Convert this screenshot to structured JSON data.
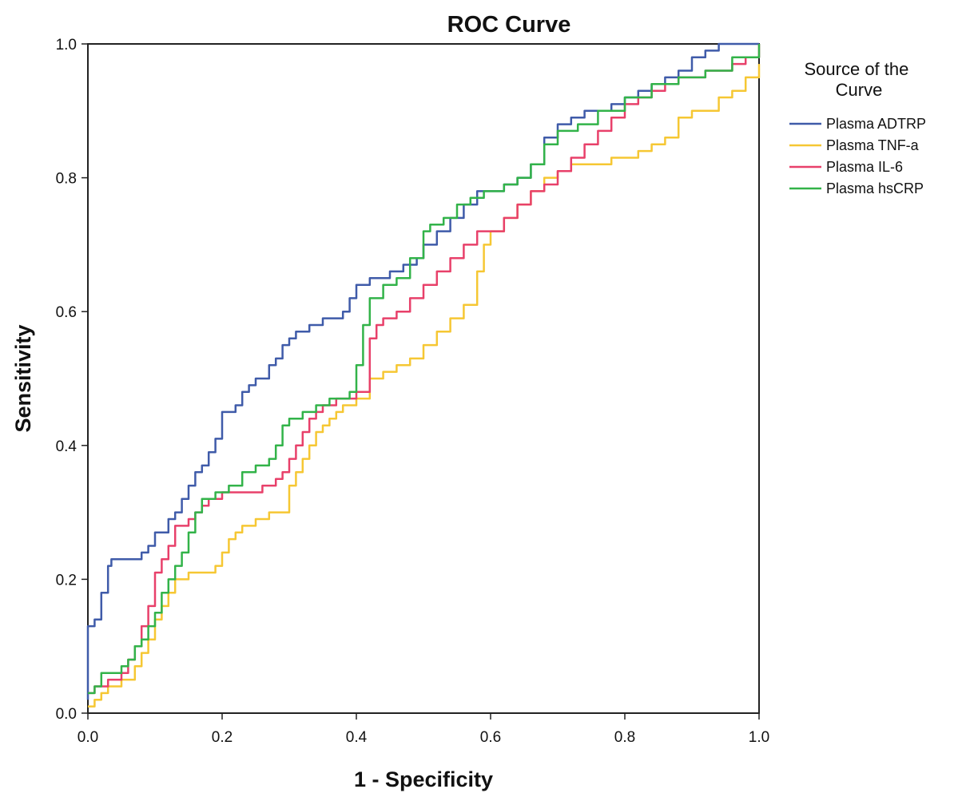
{
  "chart_data": {
    "type": "line",
    "title": "ROC Curve",
    "xlabel": "1 - Specificity",
    "ylabel": "Sensitivity",
    "xlim": [
      0,
      1
    ],
    "ylim": [
      0,
      1
    ],
    "x_ticks": [
      "0.0",
      "0.2",
      "0.4",
      "0.6",
      "0.8",
      "1.0"
    ],
    "y_ticks": [
      "0.0",
      "0.2",
      "0.4",
      "0.6",
      "0.8",
      "1.0"
    ],
    "grid": false,
    "legend": {
      "title": "Source of the Curve",
      "title_lines": [
        "Source of the",
        "Curve"
      ],
      "placement": "right"
    },
    "series": [
      {
        "name": "Plasma ADTRP",
        "color": "#3f5ba9",
        "step": true,
        "x": [
          0.0,
          0.0,
          0.01,
          0.02,
          0.03,
          0.035,
          0.05,
          0.08,
          0.09,
          0.1,
          0.12,
          0.13,
          0.14,
          0.15,
          0.16,
          0.17,
          0.18,
          0.19,
          0.2,
          0.22,
          0.23,
          0.24,
          0.25,
          0.27,
          0.28,
          0.29,
          0.3,
          0.31,
          0.33,
          0.35,
          0.36,
          0.38,
          0.39,
          0.4,
          0.42,
          0.45,
          0.47,
          0.48,
          0.49,
          0.5,
          0.52,
          0.54,
          0.56,
          0.58,
          0.6,
          0.62,
          0.64,
          0.66,
          0.68,
          0.7,
          0.72,
          0.74,
          0.76,
          0.78,
          0.8,
          0.82,
          0.84,
          0.86,
          0.88,
          0.9,
          0.92,
          0.94,
          0.96,
          1.0
        ],
        "y": [
          0.02,
          0.13,
          0.14,
          0.18,
          0.22,
          0.23,
          0.23,
          0.24,
          0.25,
          0.27,
          0.29,
          0.3,
          0.32,
          0.34,
          0.36,
          0.37,
          0.39,
          0.41,
          0.45,
          0.46,
          0.48,
          0.49,
          0.5,
          0.52,
          0.53,
          0.55,
          0.56,
          0.57,
          0.58,
          0.59,
          0.59,
          0.6,
          0.62,
          0.64,
          0.65,
          0.66,
          0.67,
          0.67,
          0.68,
          0.7,
          0.72,
          0.74,
          0.76,
          0.78,
          0.78,
          0.79,
          0.8,
          0.82,
          0.86,
          0.88,
          0.89,
          0.9,
          0.9,
          0.91,
          0.92,
          0.93,
          0.94,
          0.95,
          0.96,
          0.98,
          0.99,
          1.0,
          1.0,
          1.0
        ]
      },
      {
        "name": "Plasma TNF-a",
        "color": "#f6c733",
        "step": true,
        "x": [
          0.0,
          0.01,
          0.02,
          0.03,
          0.05,
          0.07,
          0.08,
          0.09,
          0.1,
          0.11,
          0.12,
          0.13,
          0.15,
          0.17,
          0.19,
          0.2,
          0.21,
          0.22,
          0.23,
          0.25,
          0.27,
          0.29,
          0.3,
          0.31,
          0.32,
          0.33,
          0.34,
          0.35,
          0.36,
          0.37,
          0.38,
          0.39,
          0.4,
          0.42,
          0.44,
          0.46,
          0.48,
          0.5,
          0.52,
          0.54,
          0.56,
          0.58,
          0.59,
          0.6,
          0.62,
          0.64,
          0.66,
          0.68,
          0.7,
          0.72,
          0.74,
          0.76,
          0.78,
          0.8,
          0.82,
          0.84,
          0.86,
          0.88,
          0.9,
          0.92,
          0.94,
          0.96,
          0.98,
          1.0
        ],
        "y": [
          0.01,
          0.02,
          0.03,
          0.04,
          0.05,
          0.07,
          0.09,
          0.11,
          0.14,
          0.16,
          0.18,
          0.2,
          0.21,
          0.21,
          0.22,
          0.24,
          0.26,
          0.27,
          0.28,
          0.29,
          0.3,
          0.3,
          0.34,
          0.36,
          0.38,
          0.4,
          0.42,
          0.43,
          0.44,
          0.45,
          0.46,
          0.46,
          0.47,
          0.5,
          0.51,
          0.52,
          0.53,
          0.55,
          0.57,
          0.59,
          0.61,
          0.66,
          0.7,
          0.72,
          0.74,
          0.76,
          0.78,
          0.8,
          0.81,
          0.82,
          0.82,
          0.82,
          0.83,
          0.83,
          0.84,
          0.85,
          0.86,
          0.89,
          0.9,
          0.9,
          0.92,
          0.93,
          0.95,
          0.97
        ]
      },
      {
        "name": "Plasma IL-6",
        "color": "#e8406a",
        "step": true,
        "x": [
          0.0,
          0.01,
          0.02,
          0.03,
          0.05,
          0.06,
          0.07,
          0.08,
          0.09,
          0.1,
          0.11,
          0.12,
          0.13,
          0.15,
          0.16,
          0.17,
          0.18,
          0.2,
          0.22,
          0.24,
          0.26,
          0.28,
          0.29,
          0.3,
          0.31,
          0.32,
          0.33,
          0.34,
          0.35,
          0.37,
          0.38,
          0.4,
          0.42,
          0.43,
          0.44,
          0.46,
          0.48,
          0.5,
          0.52,
          0.54,
          0.56,
          0.58,
          0.6,
          0.62,
          0.64,
          0.66,
          0.68,
          0.7,
          0.72,
          0.74,
          0.76,
          0.78,
          0.8,
          0.82,
          0.84,
          0.86,
          0.88,
          0.9,
          0.92,
          0.94,
          0.96,
          0.98,
          1.0
        ],
        "y": [
          0.03,
          0.04,
          0.04,
          0.05,
          0.06,
          0.08,
          0.1,
          0.13,
          0.16,
          0.21,
          0.23,
          0.25,
          0.28,
          0.29,
          0.3,
          0.31,
          0.32,
          0.33,
          0.33,
          0.33,
          0.34,
          0.35,
          0.36,
          0.38,
          0.4,
          0.42,
          0.44,
          0.45,
          0.46,
          0.47,
          0.47,
          0.48,
          0.56,
          0.58,
          0.59,
          0.6,
          0.62,
          0.64,
          0.66,
          0.68,
          0.7,
          0.72,
          0.72,
          0.74,
          0.76,
          0.78,
          0.79,
          0.81,
          0.83,
          0.85,
          0.87,
          0.89,
          0.91,
          0.92,
          0.93,
          0.94,
          0.95,
          0.95,
          0.96,
          0.96,
          0.97,
          0.98,
          1.0
        ]
      },
      {
        "name": "Plasma hsCRP",
        "color": "#32b349",
        "step": true,
        "x": [
          0.0,
          0.01,
          0.02,
          0.04,
          0.05,
          0.06,
          0.07,
          0.08,
          0.09,
          0.1,
          0.11,
          0.12,
          0.13,
          0.14,
          0.15,
          0.16,
          0.17,
          0.19,
          0.21,
          0.23,
          0.25,
          0.27,
          0.28,
          0.29,
          0.3,
          0.32,
          0.34,
          0.36,
          0.38,
          0.39,
          0.4,
          0.41,
          0.42,
          0.44,
          0.46,
          0.48,
          0.5,
          0.51,
          0.53,
          0.55,
          0.57,
          0.59,
          0.62,
          0.64,
          0.66,
          0.68,
          0.7,
          0.73,
          0.76,
          0.8,
          0.84,
          0.88,
          0.92,
          0.96,
          1.0
        ],
        "y": [
          0.03,
          0.04,
          0.06,
          0.06,
          0.07,
          0.08,
          0.1,
          0.11,
          0.13,
          0.15,
          0.18,
          0.2,
          0.22,
          0.24,
          0.27,
          0.3,
          0.32,
          0.33,
          0.34,
          0.36,
          0.37,
          0.38,
          0.4,
          0.43,
          0.44,
          0.45,
          0.46,
          0.47,
          0.47,
          0.48,
          0.52,
          0.58,
          0.62,
          0.64,
          0.65,
          0.68,
          0.72,
          0.73,
          0.74,
          0.76,
          0.77,
          0.78,
          0.79,
          0.8,
          0.82,
          0.85,
          0.87,
          0.88,
          0.9,
          0.92,
          0.94,
          0.95,
          0.96,
          0.98,
          1.0
        ]
      }
    ]
  }
}
